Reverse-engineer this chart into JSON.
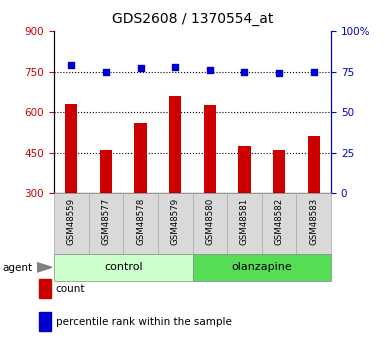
{
  "title": "GDS2608 / 1370554_at",
  "samples": [
    "GSM48559",
    "GSM48577",
    "GSM48578",
    "GSM48579",
    "GSM48580",
    "GSM48581",
    "GSM48582",
    "GSM48583"
  ],
  "counts": [
    630,
    460,
    560,
    660,
    625,
    475,
    460,
    510
  ],
  "percentiles": [
    79,
    75,
    77,
    78,
    76,
    75,
    74,
    75
  ],
  "groups": [
    {
      "label": "control",
      "start": 0,
      "end": 4,
      "color": "#ccffcc"
    },
    {
      "label": "olanzapine",
      "start": 4,
      "end": 8,
      "color": "#55dd55"
    }
  ],
  "ylim_left": [
    300,
    900
  ],
  "ylim_right": [
    0,
    100
  ],
  "yticks_left": [
    300,
    450,
    600,
    750,
    900
  ],
  "yticks_right": [
    0,
    25,
    50,
    75,
    100
  ],
  "bar_color": "#cc0000",
  "dot_color": "#0000cc",
  "agent_label": "agent",
  "legend_count": "count",
  "legend_percentile": "percentile rank within the sample",
  "left_tick_color": "#cc0000",
  "right_tick_color": "#0000cc",
  "title_color": "#000000",
  "bar_bottom": 300,
  "bar_width": 0.35
}
